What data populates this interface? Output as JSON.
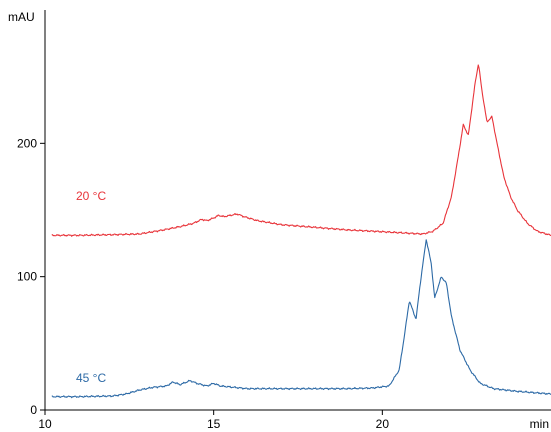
{
  "chart_data": {
    "type": "line",
    "ylabel": "mAU",
    "xlabel": "min",
    "xlim": [
      10,
      25
    ],
    "ylim": [
      0,
      300
    ],
    "x_ticks": [
      10,
      15,
      20
    ],
    "y_ticks": [
      0,
      100,
      200
    ],
    "grid": false,
    "series": [
      {
        "name": "20 °C",
        "color": "#e8343a",
        "points": [
          [
            10.2,
            131
          ],
          [
            11,
            131
          ],
          [
            12,
            131.5
          ],
          [
            12.8,
            132
          ],
          [
            13.5,
            135
          ],
          [
            14,
            137.5
          ],
          [
            14.4,
            140
          ],
          [
            14.65,
            143
          ],
          [
            14.8,
            142
          ],
          [
            15,
            144
          ],
          [
            15.15,
            146
          ],
          [
            15.3,
            145
          ],
          [
            15.5,
            146
          ],
          [
            15.7,
            147
          ],
          [
            15.9,
            145
          ],
          [
            16.3,
            142
          ],
          [
            17,
            139
          ],
          [
            18,
            137
          ],
          [
            19,
            135
          ],
          [
            19.8,
            134
          ],
          [
            20.5,
            133
          ],
          [
            21.2,
            132
          ],
          [
            21.5,
            134
          ],
          [
            21.8,
            140
          ],
          [
            22.05,
            160
          ],
          [
            22.25,
            190
          ],
          [
            22.4,
            214
          ],
          [
            22.55,
            206
          ],
          [
            22.75,
            245
          ],
          [
            22.85,
            260
          ],
          [
            22.95,
            240
          ],
          [
            23.1,
            216
          ],
          [
            23.25,
            220
          ],
          [
            23.4,
            200
          ],
          [
            23.6,
            175
          ],
          [
            23.8,
            160
          ],
          [
            24,
            150
          ],
          [
            24.3,
            140
          ],
          [
            24.6,
            134
          ],
          [
            25,
            131
          ]
        ]
      },
      {
        "name": "45 °C",
        "color": "#2d6aa6",
        "points": [
          [
            10.2,
            10
          ],
          [
            11,
            10
          ],
          [
            12,
            10.5
          ],
          [
            12.4,
            12
          ],
          [
            12.8,
            15
          ],
          [
            13.2,
            17
          ],
          [
            13.6,
            18
          ],
          [
            13.8,
            21
          ],
          [
            14,
            19
          ],
          [
            14.3,
            22
          ],
          [
            14.5,
            20
          ],
          [
            14.8,
            18
          ],
          [
            15,
            20
          ],
          [
            15.2,
            18
          ],
          [
            15.6,
            17
          ],
          [
            16,
            16
          ],
          [
            17,
            16
          ],
          [
            18,
            16
          ],
          [
            19,
            16
          ],
          [
            19.7,
            16.5
          ],
          [
            20.2,
            18
          ],
          [
            20.5,
            30
          ],
          [
            20.65,
            55
          ],
          [
            20.8,
            82
          ],
          [
            21,
            68
          ],
          [
            21.1,
            90
          ],
          [
            21.3,
            128
          ],
          [
            21.45,
            110
          ],
          [
            21.55,
            84
          ],
          [
            21.75,
            100
          ],
          [
            21.9,
            95
          ],
          [
            22.05,
            70
          ],
          [
            22.3,
            45
          ],
          [
            22.6,
            30
          ],
          [
            22.9,
            20
          ],
          [
            23.3,
            16
          ],
          [
            24,
            14
          ],
          [
            25,
            12
          ]
        ]
      }
    ]
  }
}
